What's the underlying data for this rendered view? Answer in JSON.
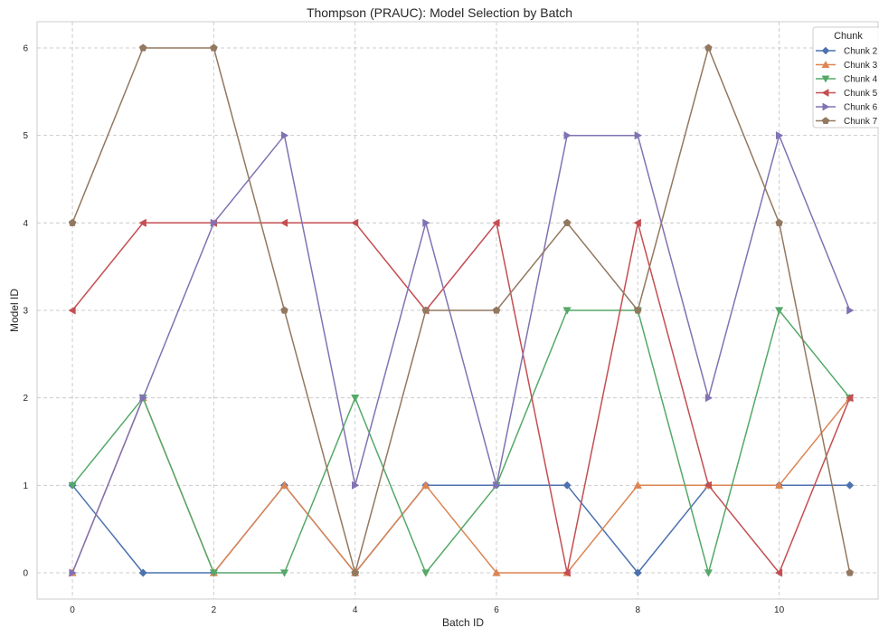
{
  "chart_data": {
    "type": "line",
    "title": "Thompson (PRAUC): Model Selection by Batch",
    "xlabel": "Batch ID",
    "ylabel": "Model ID",
    "xlim": [
      -0.5,
      11.4
    ],
    "ylim": [
      -0.3,
      6.3
    ],
    "x_ticks": [
      "0",
      "2",
      "4",
      "6",
      "8",
      "10"
    ],
    "y_ticks": [
      "0",
      "1",
      "2",
      "3",
      "4",
      "5",
      "6"
    ],
    "grid": true,
    "legend": {
      "title": "Chunk",
      "placement": "top-right"
    },
    "x": [
      0,
      1,
      2,
      3,
      4,
      5,
      6,
      7,
      8,
      9,
      10,
      11
    ],
    "series": [
      {
        "name": "Chunk 2",
        "color": "#4c72b0",
        "marker": "diamond",
        "values": [
          1,
          0,
          0,
          1,
          0,
          1,
          1,
          1,
          0,
          1,
          1,
          1
        ]
      },
      {
        "name": "Chunk 3",
        "color": "#dd8452",
        "marker": "triangle-up",
        "values": [
          0,
          2,
          0,
          1,
          0,
          1,
          0,
          0,
          1,
          1,
          1,
          2
        ]
      },
      {
        "name": "Chunk 4",
        "color": "#55a868",
        "marker": "triangle-down",
        "values": [
          1,
          2,
          0,
          0,
          2,
          0,
          1,
          3,
          3,
          0,
          3,
          2
        ]
      },
      {
        "name": "Chunk 5",
        "color": "#c44e52",
        "marker": "triangle-left",
        "values": [
          3,
          4,
          4,
          4,
          4,
          3,
          4,
          0,
          4,
          1,
          0,
          2
        ]
      },
      {
        "name": "Chunk 6",
        "color": "#8172b3",
        "marker": "triangle-right",
        "values": [
          0,
          2,
          4,
          5,
          1,
          4,
          1,
          5,
          5,
          2,
          5,
          3
        ]
      },
      {
        "name": "Chunk 7",
        "color": "#937860",
        "marker": "pentagon",
        "values": [
          4,
          6,
          6,
          3,
          0,
          3,
          3,
          4,
          3,
          6,
          4,
          0
        ]
      }
    ]
  }
}
